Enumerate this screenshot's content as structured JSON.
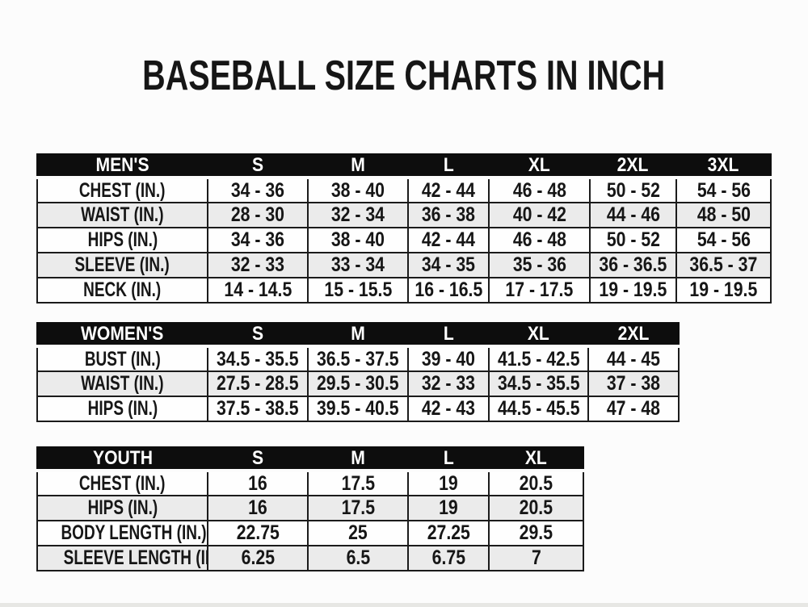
{
  "title": "BASEBALL SIZE CHARTS IN INCH",
  "colors": {
    "page_bg": "#fcfcfc",
    "header_bg": "#0d0d0d",
    "header_text": "#ffffff",
    "row_odd_bg": "#fefefe",
    "row_even_bg": "#ebebeb",
    "border": "#1b1b1b",
    "text": "#161616"
  },
  "tables": [
    {
      "name": "MEN'S",
      "columns": [
        "MEN'S",
        "S",
        "M",
        "L",
        "XL",
        "2XL",
        "3XL"
      ],
      "rows": [
        {
          "label": "CHEST (IN.)",
          "cells": [
            "34 - 36",
            "38 - 40",
            "42 - 44",
            "46 - 48",
            "50 - 52",
            "54 - 56"
          ]
        },
        {
          "label": "WAIST (IN.)",
          "cells": [
            "28 - 30",
            "32 - 34",
            "36 - 38",
            "40 - 42",
            "44 - 46",
            "48 - 50"
          ]
        },
        {
          "label": "HIPS (IN.)",
          "cells": [
            "34 - 36",
            "38 - 40",
            "42 - 44",
            "46 - 48",
            "50 - 52",
            "54 - 56"
          ]
        },
        {
          "label": "SLEEVE (IN.)",
          "cells": [
            "32 - 33",
            "33 - 34",
            "34 - 35",
            "35 - 36",
            "36 - 36.5",
            "36.5 - 37"
          ]
        },
        {
          "label": "NECK (IN.)",
          "cells": [
            "14 - 14.5",
            "15 - 15.5",
            "16 - 16.5",
            "17 - 17.5",
            "19 - 19.5",
            "19 - 19.5"
          ]
        }
      ]
    },
    {
      "name": "WOMEN'S",
      "columns": [
        "WOMEN'S",
        "S",
        "M",
        "L",
        "XL",
        "2XL"
      ],
      "rows": [
        {
          "label": "BUST (IN.)",
          "cells": [
            "34.5 - 35.5",
            "36.5 - 37.5",
            "39 - 40",
            "41.5 - 42.5",
            "44 - 45"
          ]
        },
        {
          "label": "WAIST (IN.)",
          "cells": [
            "27.5 - 28.5",
            "29.5 - 30.5",
            "32 - 33",
            "34.5 - 35.5",
            "37 - 38"
          ]
        },
        {
          "label": "HIPS (IN.)",
          "cells": [
            "37.5 - 38.5",
            "39.5 - 40.5",
            "42 - 43",
            "44.5 - 45.5",
            "47 - 48"
          ]
        }
      ]
    },
    {
      "name": "YOUTH",
      "columns": [
        "YOUTH",
        "S",
        "M",
        "L",
        "XL"
      ],
      "rows": [
        {
          "label": "CHEST (IN.)",
          "cells": [
            "16",
            "17.5",
            "19",
            "20.5"
          ]
        },
        {
          "label": "HIPS (IN.)",
          "cells": [
            "16",
            "17.5",
            "19",
            "20.5"
          ]
        },
        {
          "label": "BODY LENGTH (IN.)",
          "cells": [
            "22.75",
            "25",
            "27.25",
            "29.5"
          ]
        },
        {
          "label": "SLEEVE LENGTH (IN.)",
          "cells": [
            "6.25",
            "6.5",
            "6.75",
            "7"
          ]
        }
      ]
    }
  ]
}
